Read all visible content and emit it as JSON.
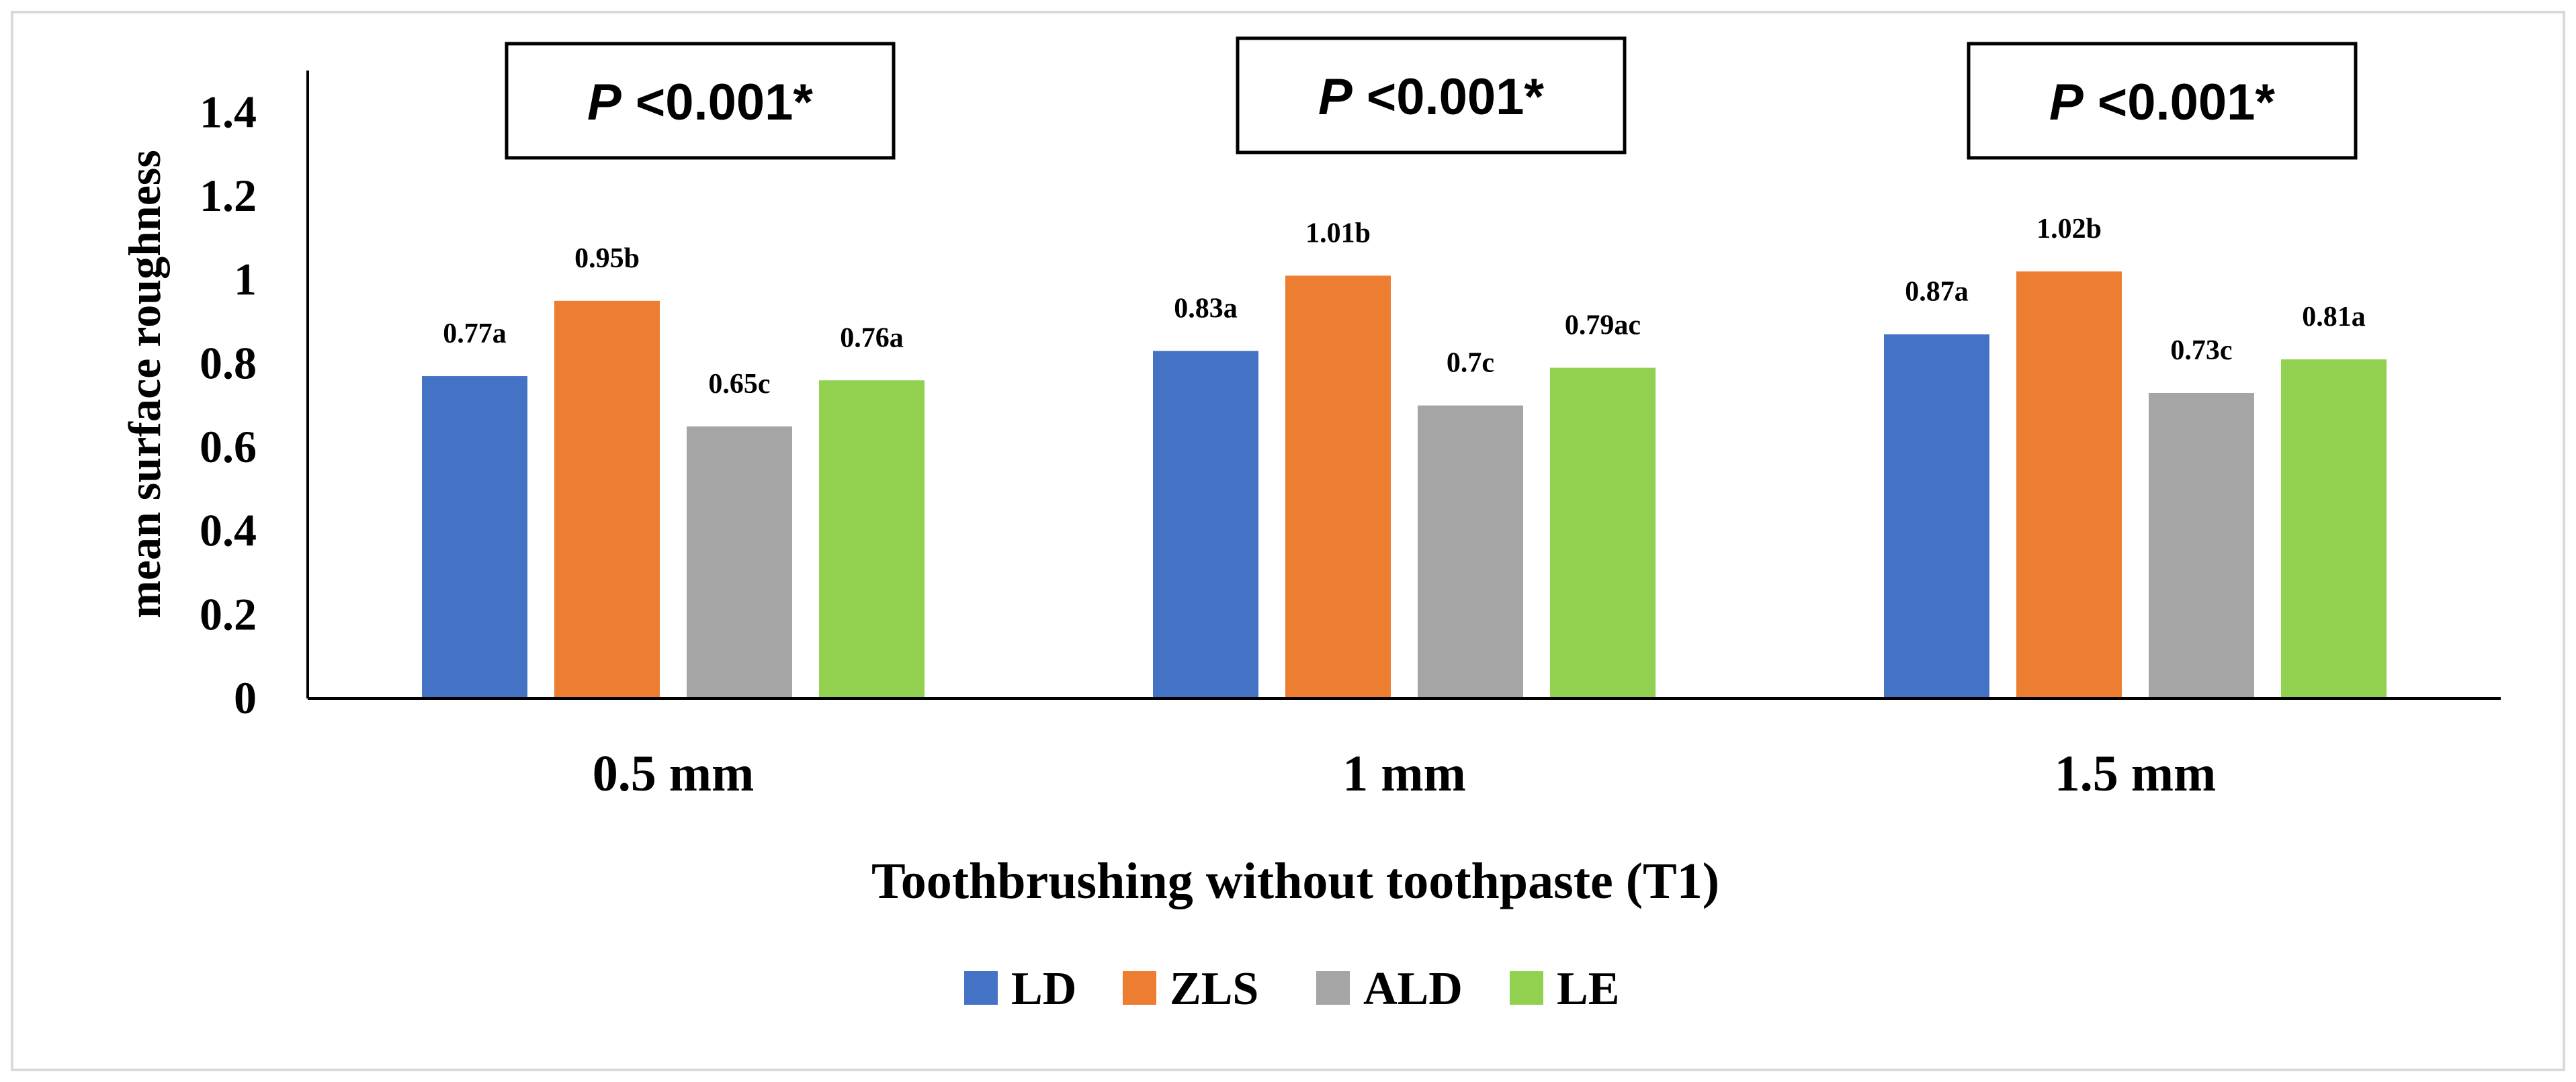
{
  "chart_data": {
    "type": "bar",
    "categories": [
      "0.5 mm",
      "1 mm",
      "1.5 mm"
    ],
    "series": [
      {
        "name": "LD",
        "color": "#4472C4",
        "values": [
          0.77,
          0.83,
          0.87
        ],
        "labels": [
          "0.77a",
          "0.83a",
          "0.87a"
        ]
      },
      {
        "name": "ZLS",
        "color": "#ED7D31",
        "values": [
          0.95,
          1.01,
          1.02
        ],
        "labels": [
          "0.95b",
          "1.01b",
          "1.02b"
        ]
      },
      {
        "name": "ALD",
        "color": "#A5A5A5",
        "values": [
          0.65,
          0.7,
          0.73
        ],
        "labels": [
          "0.65c",
          "0.7c",
          "0.73c"
        ]
      },
      {
        "name": "LE",
        "color": "#92D050",
        "values": [
          0.76,
          0.79,
          0.81
        ],
        "labels": [
          "0.76a",
          "0.79ac",
          "0.81a"
        ]
      }
    ],
    "xlabel": "Toothbrushing without toothpaste (T1)",
    "ylabel": "mean surface roughness",
    "ylim": [
      0,
      1.5
    ],
    "yticks": [
      "0",
      "0.2",
      "0.4",
      "0.6",
      "0.8",
      "1",
      "1.2",
      "1.4"
    ],
    "ytick_values": [
      0,
      0.2,
      0.4,
      0.6,
      0.8,
      1.0,
      1.2,
      1.4
    ],
    "annotations": [
      {
        "p": "P",
        "text": " <0.001*"
      },
      {
        "p": "P",
        "text": " <0.001*"
      },
      {
        "p": "P",
        "text": " <0.001*"
      }
    ],
    "legend_position": "bottom",
    "grid": false
  }
}
